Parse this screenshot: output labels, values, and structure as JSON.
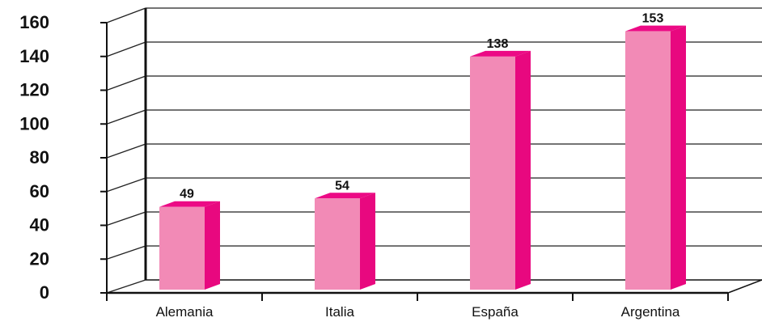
{
  "chart_data": {
    "type": "bar",
    "categories": [
      "Alemania",
      "Italia",
      "España",
      "Argentina"
    ],
    "values": [
      49,
      54,
      138,
      153
    ],
    "data_labels": [
      "49",
      "54",
      "138",
      "153"
    ],
    "title": "",
    "xlabel": "",
    "ylabel": "",
    "ylim": [
      0,
      160
    ],
    "yticks": [
      "0",
      "20",
      "40",
      "60",
      "80",
      "100",
      "120",
      "140",
      "160"
    ],
    "grid": true,
    "legend": "none",
    "style": "3d-column",
    "colors": {
      "bar_front": "#F28AB6",
      "bar_side": "#E8087F",
      "bar_top": "#EC0A85",
      "axis": "#111111",
      "grid": "#222222"
    }
  }
}
